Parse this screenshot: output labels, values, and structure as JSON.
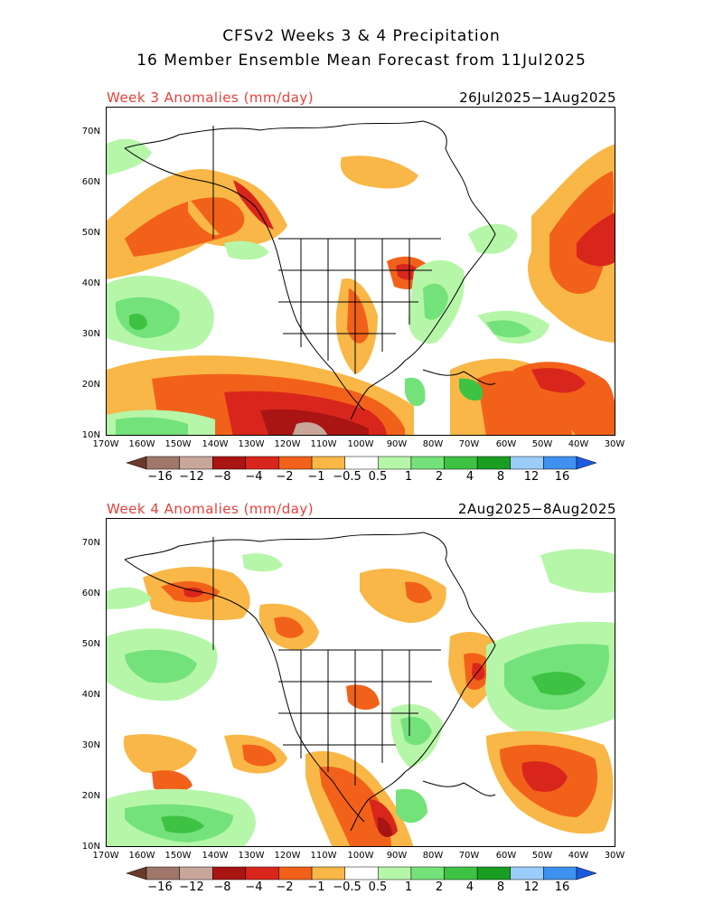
{
  "header": {
    "title_line1": "CFSv2 Weeks 3 & 4 Precipitation",
    "title_line2": "16 Member Ensemble Mean Forecast from 11Jul2025"
  },
  "panels": [
    {
      "label": "Week 3 Anomalies (mm/day)",
      "dates": "26Jul2025−1Aug2025"
    },
    {
      "label": "Week 4 Anomalies (mm/day)",
      "dates": "2Aug2025−8Aug2025"
    }
  ],
  "lat_labels": [
    "70N",
    "60N",
    "50N",
    "40N",
    "30N",
    "20N",
    "10N"
  ],
  "lon_labels": [
    "170W",
    "160W",
    "150W",
    "140W",
    "130W",
    "120W",
    "110W",
    "100W",
    "90W",
    "80W",
    "70W",
    "60W",
    "50W",
    "40W",
    "30W"
  ],
  "colorbar": {
    "labels": [
      "−16",
      "−12",
      "−8",
      "−4",
      "−2",
      "−1",
      "−0.5",
      "0.5",
      "1",
      "2",
      "4",
      "8",
      "12",
      "16"
    ],
    "colors": [
      "#6b3a2a",
      "#a0776a",
      "#c9a69a",
      "#a81513",
      "#d9261c",
      "#f2611a",
      "#f8b746",
      "#ffffff",
      "#b6f6a9",
      "#74e27a",
      "#3ec243",
      "#1a9e22",
      "#9cccfa",
      "#3f91ef",
      "#1c5be0"
    ]
  },
  "legend_colors": {
    "dry_strong": "#a81513",
    "dry_mid": "#d9261c",
    "dry_light": "#f2611a",
    "dry_weak": "#f8b746",
    "wet_weak": "#b6f6a9",
    "wet_mid": "#74e27a",
    "wet_strong": "#3ec243",
    "wet_max": "#1a9e22"
  }
}
